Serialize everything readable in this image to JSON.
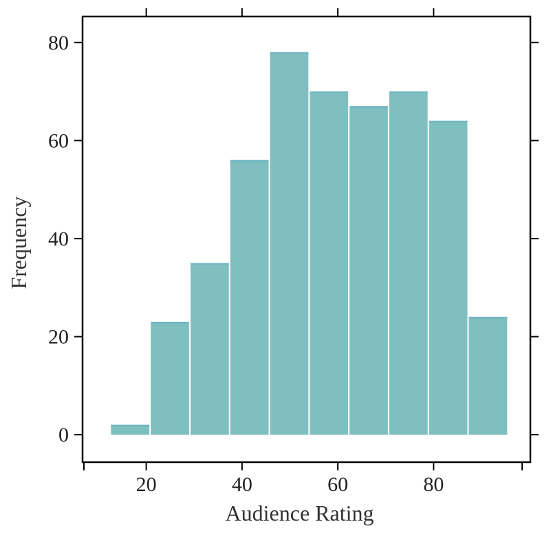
{
  "chart_data": {
    "type": "bar",
    "title": "",
    "xlabel": "Audience Rating",
    "ylabel": "Frequency",
    "bins": [
      {
        "x0": 12.5,
        "x1": 20.8,
        "value": 2
      },
      {
        "x0": 20.8,
        "x1": 29.1,
        "value": 23
      },
      {
        "x0": 29.1,
        "x1": 37.4,
        "value": 35
      },
      {
        "x0": 37.4,
        "x1": 45.7,
        "value": 56
      },
      {
        "x0": 45.7,
        "x1": 54.0,
        "value": 78
      },
      {
        "x0": 54.0,
        "x1": 62.3,
        "value": 70
      },
      {
        "x0": 62.3,
        "x1": 70.6,
        "value": 67
      },
      {
        "x0": 70.6,
        "x1": 78.9,
        "value": 70
      },
      {
        "x0": 78.9,
        "x1": 87.2,
        "value": 64
      },
      {
        "x0": 87.2,
        "x1": 95.5,
        "value": 24
      }
    ],
    "xticks": [
      20,
      40,
      60,
      80
    ],
    "yticks": [
      0,
      20,
      40,
      60,
      80
    ],
    "xlim": [
      6.7,
      100.2
    ],
    "ylim": [
      -5.6,
      85.3
    ],
    "grid": false,
    "bar_color": "#80bfbf",
    "bar_edge_color": "#6fb6c2",
    "bar_gap_color": "#ffffff"
  }
}
